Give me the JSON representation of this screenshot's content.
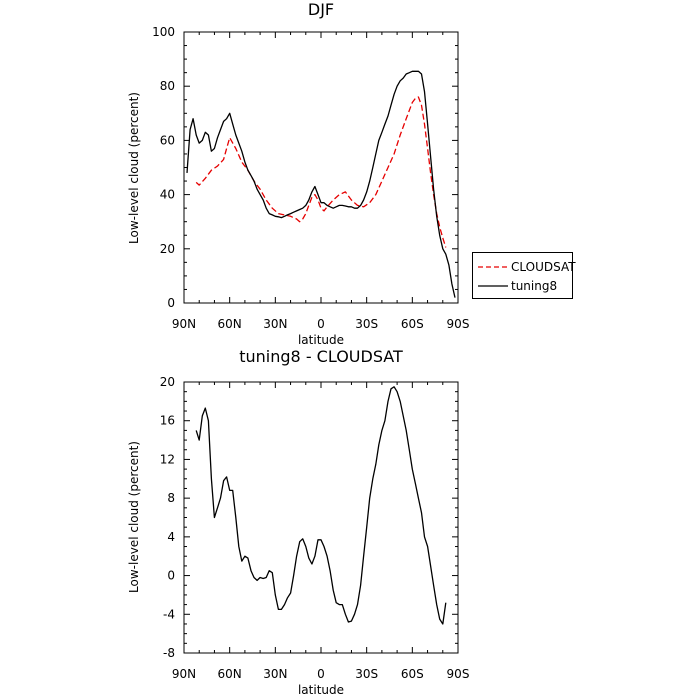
{
  "chart_data": [
    {
      "type": "line",
      "title": "DJF",
      "xlabel": "latitude",
      "ylabel": "Low-level cloud (percent)",
      "x_tick_labels": [
        "90N",
        "60N",
        "30N",
        "0",
        "30S",
        "60S",
        "90S"
      ],
      "x_ticks": [
        90,
        60,
        30,
        0,
        -30,
        -60,
        -90
      ],
      "y_tick_labels": [
        "0",
        "20",
        "40",
        "60",
        "80",
        "100"
      ],
      "xlim": [
        90,
        -90
      ],
      "ylim": [
        0,
        100
      ],
      "legend": "outside-right",
      "series": [
        {
          "name": "CLOUDSAT",
          "color": "#e60000",
          "dash": true,
          "x": [
            82,
            80,
            76,
            72,
            68,
            64,
            62,
            60,
            56,
            52,
            48,
            44,
            40,
            36,
            32,
            28,
            24,
            20,
            16,
            14,
            12,
            10,
            8,
            6,
            4,
            2,
            0,
            -2,
            -4,
            -8,
            -12,
            -16,
            -20,
            -24,
            -28,
            -32,
            -36,
            -40,
            -44,
            -48,
            -52,
            -56,
            -60,
            -62,
            -64,
            -66,
            -68,
            -70,
            -72,
            -74,
            -76,
            -78,
            -80,
            -82
          ],
          "y": [
            44.5,
            43.5,
            46,
            49,
            50.5,
            53,
            57,
            61,
            57,
            52,
            49,
            45,
            42,
            38,
            35,
            33,
            32.5,
            32,
            31,
            30,
            31,
            33,
            36,
            39,
            40,
            38,
            35,
            34,
            35.5,
            38,
            40,
            41,
            38,
            36,
            35.5,
            37,
            40,
            45,
            50,
            55,
            62,
            68,
            74,
            75.5,
            76,
            73,
            66,
            57,
            48,
            40,
            33,
            28,
            24,
            20.5
          ]
        },
        {
          "name": "tuning8",
          "color": "#000000",
          "dash": false,
          "x": [
            88,
            86,
            84,
            82,
            80,
            78,
            76,
            74,
            72,
            70,
            68,
            66,
            64,
            62,
            60,
            58,
            56,
            54,
            52,
            50,
            48,
            46,
            44,
            42,
            40,
            38,
            36,
            34,
            32,
            30,
            28,
            26,
            24,
            22,
            20,
            18,
            16,
            14,
            12,
            10,
            8,
            6,
            4,
            2,
            0,
            -2,
            -4,
            -6,
            -8,
            -10,
            -12,
            -14,
            -16,
            -18,
            -20,
            -22,
            -24,
            -26,
            -28,
            -30,
            -32,
            -34,
            -36,
            -38,
            -40,
            -42,
            -44,
            -46,
            -48,
            -50,
            -52,
            -54,
            -56,
            -58,
            -60,
            -62,
            -64,
            -66,
            -68,
            -70,
            -72,
            -74,
            -76,
            -78,
            -80,
            -82,
            -84,
            -86,
            -88
          ],
          "y": [
            48,
            64,
            68,
            62,
            59,
            60,
            63,
            62,
            56,
            57,
            61,
            64,
            67,
            68,
            70,
            66,
            62,
            59,
            56,
            52,
            49,
            47,
            45,
            42,
            40,
            38,
            35,
            33,
            32.5,
            32,
            31.8,
            31.5,
            32,
            32.5,
            33,
            33.5,
            34,
            34.5,
            35,
            36,
            38,
            41,
            43,
            40,
            37,
            37,
            36,
            35.5,
            35,
            35.5,
            36,
            36,
            35.8,
            35.5,
            35.5,
            35,
            35,
            36,
            38,
            41,
            45,
            50,
            55,
            60,
            63,
            66,
            69,
            73,
            77,
            80,
            82,
            83,
            84.5,
            85,
            85.5,
            85.5,
            85.5,
            84.5,
            78,
            66,
            54,
            42,
            32,
            25,
            20,
            18,
            14,
            7,
            2
          ]
        }
      ]
    },
    {
      "type": "line",
      "title": "tuning8 - CLOUDSAT",
      "xlabel": "latitude",
      "ylabel": "Low-level cloud (percent)",
      "x_tick_labels": [
        "90N",
        "60N",
        "30N",
        "0",
        "30S",
        "60S",
        "90S"
      ],
      "x_ticks": [
        90,
        60,
        30,
        0,
        -30,
        -60,
        -90
      ],
      "y_tick_labels": [
        "-8",
        "-4",
        "0",
        "4",
        "8",
        "12",
        "16",
        "20"
      ],
      "xlim": [
        90,
        -90
      ],
      "ylim": [
        -8,
        20
      ],
      "series": [
        {
          "color": "#000000",
          "x": [
            82,
            80,
            78,
            76,
            74,
            72,
            70,
            68,
            66,
            64,
            62,
            60,
            58,
            56,
            54,
            52,
            50,
            48,
            46,
            44,
            42,
            40,
            38,
            36,
            34,
            32,
            30,
            28,
            26,
            24,
            22,
            20,
            18,
            16,
            14,
            12,
            10,
            8,
            6,
            4,
            2,
            0,
            -2,
            -4,
            -6,
            -8,
            -10,
            -12,
            -14,
            -16,
            -18,
            -20,
            -22,
            -24,
            -26,
            -28,
            -30,
            -32,
            -34,
            -36,
            -38,
            -40,
            -42,
            -44,
            -46,
            -48,
            -50,
            -52,
            -54,
            -56,
            -58,
            -60,
            -62,
            -64,
            -66,
            -68,
            -70,
            -72,
            -74,
            -76,
            -78,
            -80,
            -82
          ],
          "y": [
            15,
            14,
            16.5,
            17.3,
            16,
            10,
            6,
            7,
            8,
            9.8,
            10.2,
            8.8,
            8.8,
            6,
            3,
            1.5,
            2,
            1.8,
            0.5,
            -0.2,
            -0.5,
            -0.2,
            -0.3,
            -0.2,
            0.5,
            0.3,
            -2,
            -3.5,
            -3.5,
            -3,
            -2.3,
            -1.8,
            0,
            2,
            3.5,
            3.8,
            3,
            1.8,
            1.2,
            2,
            3.7,
            3.7,
            3,
            2,
            0.5,
            -1.5,
            -2.8,
            -3,
            -3,
            -4,
            -4.8,
            -4.7,
            -4,
            -3,
            -1,
            2,
            5,
            8,
            10,
            11.5,
            13.5,
            15,
            16,
            18,
            19.3,
            19.5,
            19,
            18,
            16.5,
            15,
            13,
            11,
            9.5,
            8,
            6.5,
            4,
            3,
            1,
            -1,
            -3,
            -4.5,
            -5,
            -2.8
          ]
        }
      ]
    }
  ]
}
